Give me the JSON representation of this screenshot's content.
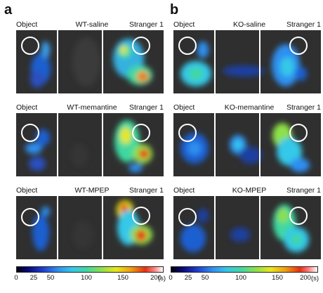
{
  "panel_a": {
    "letter": "a",
    "rows": [
      {
        "object_label": "Object",
        "condition_label": "WT-saline",
        "stranger_label": "Stranger 1"
      },
      {
        "object_label": "Object",
        "condition_label": "WT-memantine",
        "stranger_label": "Stranger 1"
      },
      {
        "object_label": "Object",
        "condition_label": "WT-MPEP",
        "stranger_label": "Stranger 1"
      }
    ]
  },
  "panel_b": {
    "letter": "b",
    "rows": [
      {
        "object_label": "Object",
        "condition_label": "KO-saline",
        "stranger_label": "Stranger 1"
      },
      {
        "object_label": "Object",
        "condition_label": "KO-memantine",
        "stranger_label": "Stranger 1"
      },
      {
        "object_label": "Object",
        "condition_label": "KO-MPEP",
        "stranger_label": "Stranger 1"
      }
    ]
  },
  "colorbar": {
    "ticks": [
      "0",
      "25",
      "50",
      "100",
      "150",
      "200"
    ],
    "unit": "(s)"
  }
}
